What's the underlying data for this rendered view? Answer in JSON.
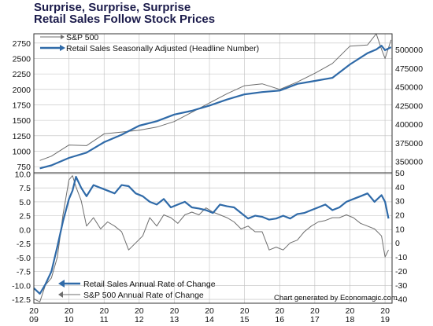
{
  "header": {
    "title_line1": "Surprise, Surprise, Surprise",
    "title_line2": "Retail Sales Follow Stock Prices"
  },
  "credit": "Chart generated by Economagic.com",
  "colors": {
    "sp500": "#6d6d6d",
    "retail": "#2f6aa8",
    "frame": "#333333",
    "grid": "#bfbfbf"
  },
  "chart_data": [
    {
      "type": "line",
      "panel": "top",
      "legend_position": "top-left",
      "grid": true,
      "left_axis": {
        "ticks": [
          "2750",
          "2500",
          "2250",
          "2000",
          "1750",
          "1500",
          "1250",
          "1000",
          "750"
        ],
        "ylim": [
          650,
          2900
        ]
      },
      "right_axis": {
        "ticks": [
          "500000",
          "475000",
          "450000",
          "425000",
          "400000",
          "375000",
          "350000"
        ],
        "ylim": [
          335000,
          521000
        ]
      },
      "x": [
        2009.17,
        2009.5,
        2010.0,
        2010.5,
        2011.0,
        2011.5,
        2012.0,
        2012.5,
        2013.0,
        2013.5,
        2014.0,
        2014.5,
        2015.0,
        2015.5,
        2016.0,
        2016.5,
        2017.0,
        2017.5,
        2018.0,
        2018.5,
        2018.75,
        2018.9,
        2019.0,
        2019.17
      ],
      "series": [
        {
          "name": "S&P 500",
          "axis": "left",
          "values": [
            850,
            920,
            1100,
            1090,
            1280,
            1310,
            1340,
            1390,
            1480,
            1630,
            1780,
            1930,
            2060,
            2090,
            2000,
            2120,
            2260,
            2420,
            2700,
            2720,
            2900,
            2650,
            2500,
            2800
          ]
        },
        {
          "name": "Retail Sales Seasonally Adjusted (Headline Number)",
          "axis": "right",
          "values": [
            341000,
            345000,
            355000,
            362000,
            376000,
            386000,
            398000,
            404000,
            413000,
            418000,
            425000,
            433000,
            440000,
            443000,
            445000,
            454000,
            458000,
            462000,
            480000,
            495000,
            500000,
            505000,
            499000,
            503000
          ]
        }
      ]
    },
    {
      "type": "line",
      "panel": "bottom",
      "legend_position": "bottom-left",
      "grid": true,
      "left_axis": {
        "ticks": [
          "10.0",
          "7.5",
          "5.0",
          "2.5",
          "0.0",
          "-2.5",
          "-5.0",
          "-7.5",
          "-10.0",
          "-12.5"
        ],
        "ylim": [
          -13.2,
          10.2
        ]
      },
      "right_axis": {
        "ticks": [
          "50",
          "40",
          "30",
          "20",
          "10",
          "0",
          "-10",
          "-20",
          "-30",
          "-40"
        ],
        "ylim": [
          -43,
          50
        ]
      },
      "x_ticks": [
        {
          "top": "20",
          "bottom": "09"
        },
        {
          "top": "20",
          "bottom": "10"
        },
        {
          "top": "20",
          "bottom": "11"
        },
        {
          "top": "20",
          "bottom": "12"
        },
        {
          "top": "20",
          "bottom": "13"
        },
        {
          "top": "20",
          "bottom": "14"
        },
        {
          "top": "20",
          "bottom": "15"
        },
        {
          "top": "20",
          "bottom": "16"
        },
        {
          "top": "20",
          "bottom": "17"
        },
        {
          "top": "20",
          "bottom": "18"
        },
        {
          "top": "20",
          "bottom": "19"
        }
      ],
      "series": [
        {
          "name": "Retail Sales Annual Rate of Change",
          "axis": "left",
          "x": [
            2009.0,
            2009.17,
            2009.33,
            2009.5,
            2009.67,
            2009.83,
            2010.0,
            2010.1,
            2010.2,
            2010.35,
            2010.5,
            2010.7,
            2010.9,
            2011.1,
            2011.3,
            2011.5,
            2011.7,
            2011.9,
            2012.1,
            2012.3,
            2012.5,
            2012.7,
            2012.9,
            2013.1,
            2013.3,
            2013.5,
            2013.7,
            2013.9,
            2014.1,
            2014.3,
            2014.5,
            2014.7,
            2014.9,
            2015.1,
            2015.3,
            2015.5,
            2015.7,
            2015.9,
            2016.1,
            2016.3,
            2016.5,
            2016.7,
            2016.9,
            2017.1,
            2017.3,
            2017.5,
            2017.7,
            2017.9,
            2018.1,
            2018.3,
            2018.5,
            2018.7,
            2018.9,
            2019.0,
            2019.1
          ],
          "values": [
            -10.5,
            -11.5,
            -9.8,
            -7.5,
            -3.0,
            1.5,
            5.5,
            7.0,
            9.5,
            7.5,
            6.0,
            8.0,
            7.5,
            7.0,
            6.5,
            8.0,
            7.8,
            6.5,
            6.0,
            5.0,
            4.5,
            5.5,
            4.0,
            4.5,
            5.0,
            4.0,
            3.8,
            3.5,
            3.0,
            4.5,
            4.2,
            4.0,
            3.0,
            2.0,
            2.5,
            2.3,
            1.8,
            2.0,
            2.5,
            2.0,
            2.8,
            3.0,
            3.5,
            4.0,
            4.5,
            3.5,
            4.0,
            5.0,
            5.5,
            6.0,
            6.5,
            5.0,
            6.2,
            5.0,
            2.0
          ]
        },
        {
          "name": "S&P 500 Annual Rate of Change",
          "axis": "right",
          "x": [
            2009.0,
            2009.17,
            2009.33,
            2009.5,
            2009.67,
            2009.83,
            2010.0,
            2010.1,
            2010.2,
            2010.35,
            2010.5,
            2010.7,
            2010.9,
            2011.1,
            2011.3,
            2011.5,
            2011.7,
            2011.9,
            2012.1,
            2012.3,
            2012.5,
            2012.7,
            2012.9,
            2013.1,
            2013.3,
            2013.5,
            2013.7,
            2013.9,
            2014.1,
            2014.3,
            2014.5,
            2014.7,
            2014.9,
            2015.1,
            2015.3,
            2015.5,
            2015.7,
            2015.9,
            2016.1,
            2016.3,
            2016.5,
            2016.7,
            2016.9,
            2017.1,
            2017.3,
            2017.5,
            2017.7,
            2017.9,
            2018.1,
            2018.3,
            2018.5,
            2018.7,
            2018.9,
            2019.0,
            2019.1
          ],
          "values": [
            -40,
            -42,
            -30,
            -25,
            -10,
            20,
            45,
            48,
            40,
            30,
            12,
            18,
            10,
            15,
            12,
            8,
            -5,
            0,
            5,
            18,
            12,
            20,
            18,
            14,
            20,
            22,
            20,
            25,
            22,
            20,
            18,
            15,
            10,
            12,
            8,
            8,
            -5,
            -3,
            -5,
            0,
            2,
            8,
            12,
            15,
            16,
            18,
            18,
            20,
            18,
            14,
            12,
            10,
            5,
            -10,
            -5
          ]
        }
      ]
    }
  ]
}
